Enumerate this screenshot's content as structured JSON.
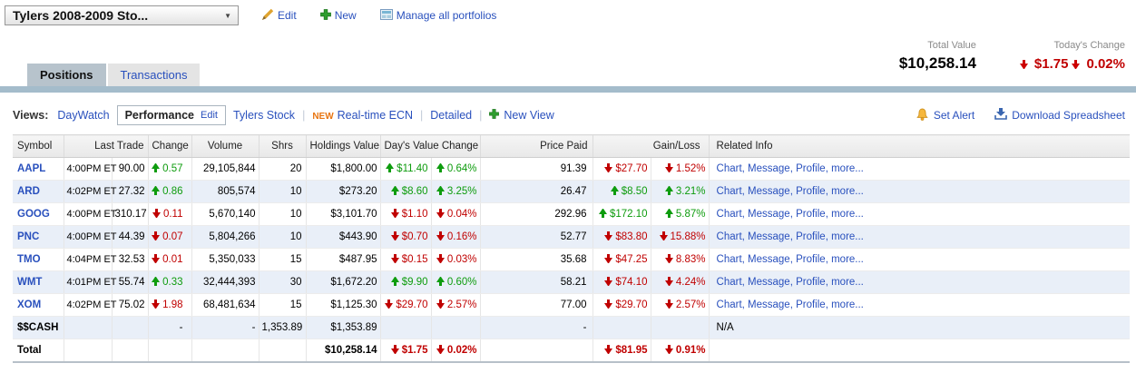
{
  "portfolio_bar": {
    "selector_value": "Tylers 2008-2009 Sto...",
    "edit_label": "Edit",
    "new_label": "New",
    "manage_label": "Manage all portfolios"
  },
  "summary": {
    "total_value_label": "Total Value",
    "total_value": "$10,258.14",
    "todays_change_label": "Today's Change",
    "todays_change_amount": "$1.75",
    "todays_change_percent": "0.02%",
    "todays_change_direction": "down"
  },
  "tabs": [
    {
      "label": "Positions",
      "active": true
    },
    {
      "label": "Transactions",
      "active": false
    }
  ],
  "views": {
    "label": "Views:",
    "items": [
      {
        "label": "DayWatch"
      },
      {
        "label": "Performance",
        "active": true,
        "edit_label": "Edit"
      },
      {
        "label": "Tylers Stock"
      },
      {
        "label": "Real-time ECN",
        "badge": "NEW"
      },
      {
        "label": "Detailed"
      },
      {
        "label": "New View",
        "icon": "plus"
      }
    ]
  },
  "toolbar": {
    "set_alert_label": "Set Alert",
    "download_label": "Download Spreadsheet"
  },
  "table": {
    "headers": {
      "symbol": "Symbol",
      "last_trade": "Last Trade",
      "change": "Change",
      "volume": "Volume",
      "shrs": "Shrs",
      "holdings_value": "Holdings Value",
      "days_value_change": "Day's Value Change",
      "price_paid": "Price Paid",
      "gain_loss": "Gain/Loss",
      "related_info": "Related Info"
    },
    "rows": [
      {
        "symbol": "AAPL",
        "symbol_link": true,
        "time": "4:00PM ET",
        "last": "90.00",
        "change": {
          "dir": "up",
          "text": "0.57"
        },
        "volume": "29,105,844",
        "shrs": "20",
        "holdings": "$1,800.00",
        "day_value": {
          "dir": "up",
          "text": "$11.40"
        },
        "day_pct": {
          "dir": "up",
          "text": "0.64%"
        },
        "price_paid": "91.39",
        "gain_value": {
          "dir": "down",
          "text": "$27.70"
        },
        "gain_pct": {
          "dir": "down",
          "text": "1.52%"
        },
        "related": [
          "Chart",
          "Message",
          "Profile",
          "more..."
        ]
      },
      {
        "symbol": "ARD",
        "symbol_link": true,
        "time": "4:02PM ET",
        "last": "27.32",
        "change": {
          "dir": "up",
          "text": "0.86"
        },
        "volume": "805,574",
        "shrs": "10",
        "holdings": "$273.20",
        "day_value": {
          "dir": "up",
          "text": "$8.60"
        },
        "day_pct": {
          "dir": "up",
          "text": "3.25%"
        },
        "price_paid": "26.47",
        "gain_value": {
          "dir": "up",
          "text": "$8.50"
        },
        "gain_pct": {
          "dir": "up",
          "text": "3.21%"
        },
        "related": [
          "Chart",
          "Message",
          "Profile",
          "more..."
        ]
      },
      {
        "symbol": "GOOG",
        "symbol_link": true,
        "time": "4:00PM ET",
        "last": "310.17",
        "change": {
          "dir": "down",
          "text": "0.11"
        },
        "volume": "5,670,140",
        "shrs": "10",
        "holdings": "$3,101.70",
        "day_value": {
          "dir": "down",
          "text": "$1.10"
        },
        "day_pct": {
          "dir": "down",
          "text": "0.04%"
        },
        "price_paid": "292.96",
        "gain_value": {
          "dir": "up",
          "text": "$172.10"
        },
        "gain_pct": {
          "dir": "up",
          "text": "5.87%"
        },
        "related": [
          "Chart",
          "Message",
          "Profile",
          "more..."
        ]
      },
      {
        "symbol": "PNC",
        "symbol_link": true,
        "time": "4:00PM ET",
        "last": "44.39",
        "change": {
          "dir": "down",
          "text": "0.07"
        },
        "volume": "5,804,266",
        "shrs": "10",
        "holdings": "$443.90",
        "day_value": {
          "dir": "down",
          "text": "$0.70"
        },
        "day_pct": {
          "dir": "down",
          "text": "0.16%"
        },
        "price_paid": "52.77",
        "gain_value": {
          "dir": "down",
          "text": "$83.80"
        },
        "gain_pct": {
          "dir": "down",
          "text": "15.88%"
        },
        "related": [
          "Chart",
          "Message",
          "Profile",
          "more..."
        ]
      },
      {
        "symbol": "TMO",
        "symbol_link": true,
        "time": "4:04PM ET",
        "last": "32.53",
        "change": {
          "dir": "down",
          "text": "0.01"
        },
        "volume": "5,350,033",
        "shrs": "15",
        "holdings": "$487.95",
        "day_value": {
          "dir": "down",
          "text": "$0.15"
        },
        "day_pct": {
          "dir": "down",
          "text": "0.03%"
        },
        "price_paid": "35.68",
        "gain_value": {
          "dir": "down",
          "text": "$47.25"
        },
        "gain_pct": {
          "dir": "down",
          "text": "8.83%"
        },
        "related": [
          "Chart",
          "Message",
          "Profile",
          "more..."
        ]
      },
      {
        "symbol": "WMT",
        "symbol_link": true,
        "time": "4:01PM ET",
        "last": "55.74",
        "change": {
          "dir": "up",
          "text": "0.33"
        },
        "volume": "32,444,393",
        "shrs": "30",
        "holdings": "$1,672.20",
        "day_value": {
          "dir": "up",
          "text": "$9.90"
        },
        "day_pct": {
          "dir": "up",
          "text": "0.60%"
        },
        "price_paid": "58.21",
        "gain_value": {
          "dir": "down",
          "text": "$74.10"
        },
        "gain_pct": {
          "dir": "down",
          "text": "4.24%"
        },
        "related": [
          "Chart",
          "Message",
          "Profile",
          "more..."
        ]
      },
      {
        "symbol": "XOM",
        "symbol_link": true,
        "time": "4:02PM ET",
        "last": "75.02",
        "change": {
          "dir": "down",
          "text": "1.98"
        },
        "volume": "68,481,634",
        "shrs": "15",
        "holdings": "$1,125.30",
        "day_value": {
          "dir": "down",
          "text": "$29.70"
        },
        "day_pct": {
          "dir": "down",
          "text": "2.57%"
        },
        "price_paid": "77.00",
        "gain_value": {
          "dir": "down",
          "text": "$29.70"
        },
        "gain_pct": {
          "dir": "down",
          "text": "2.57%"
        },
        "related": [
          "Chart",
          "Message",
          "Profile",
          "more..."
        ]
      },
      {
        "symbol": "$$CASH",
        "symbol_link": false,
        "time": "",
        "last": "",
        "change": "-",
        "volume": "-",
        "shrs": "1,353.89",
        "holdings": "$1,353.89",
        "day_value": null,
        "day_pct": null,
        "price_paid": "-",
        "gain_value": null,
        "gain_pct": null,
        "related": "N/A"
      },
      {
        "symbol": "Total",
        "symbol_link": false,
        "total": true,
        "time": "",
        "last": "",
        "change": null,
        "volume": "",
        "shrs": "",
        "holdings": "$10,258.14",
        "day_value": {
          "dir": "down",
          "text": "$1.75"
        },
        "day_pct": {
          "dir": "down",
          "text": "0.02%"
        },
        "price_paid": "",
        "gain_value": {
          "dir": "down",
          "text": "$81.95"
        },
        "gain_pct": {
          "dir": "down",
          "text": "0.91%"
        },
        "related": null
      }
    ]
  },
  "colors": {
    "up_green": "#0e9c0e",
    "down_red": "#c00000",
    "link_blue": "#2950bd",
    "new_badge_orange": "#e87511",
    "tab_band": "#a4bccb"
  }
}
